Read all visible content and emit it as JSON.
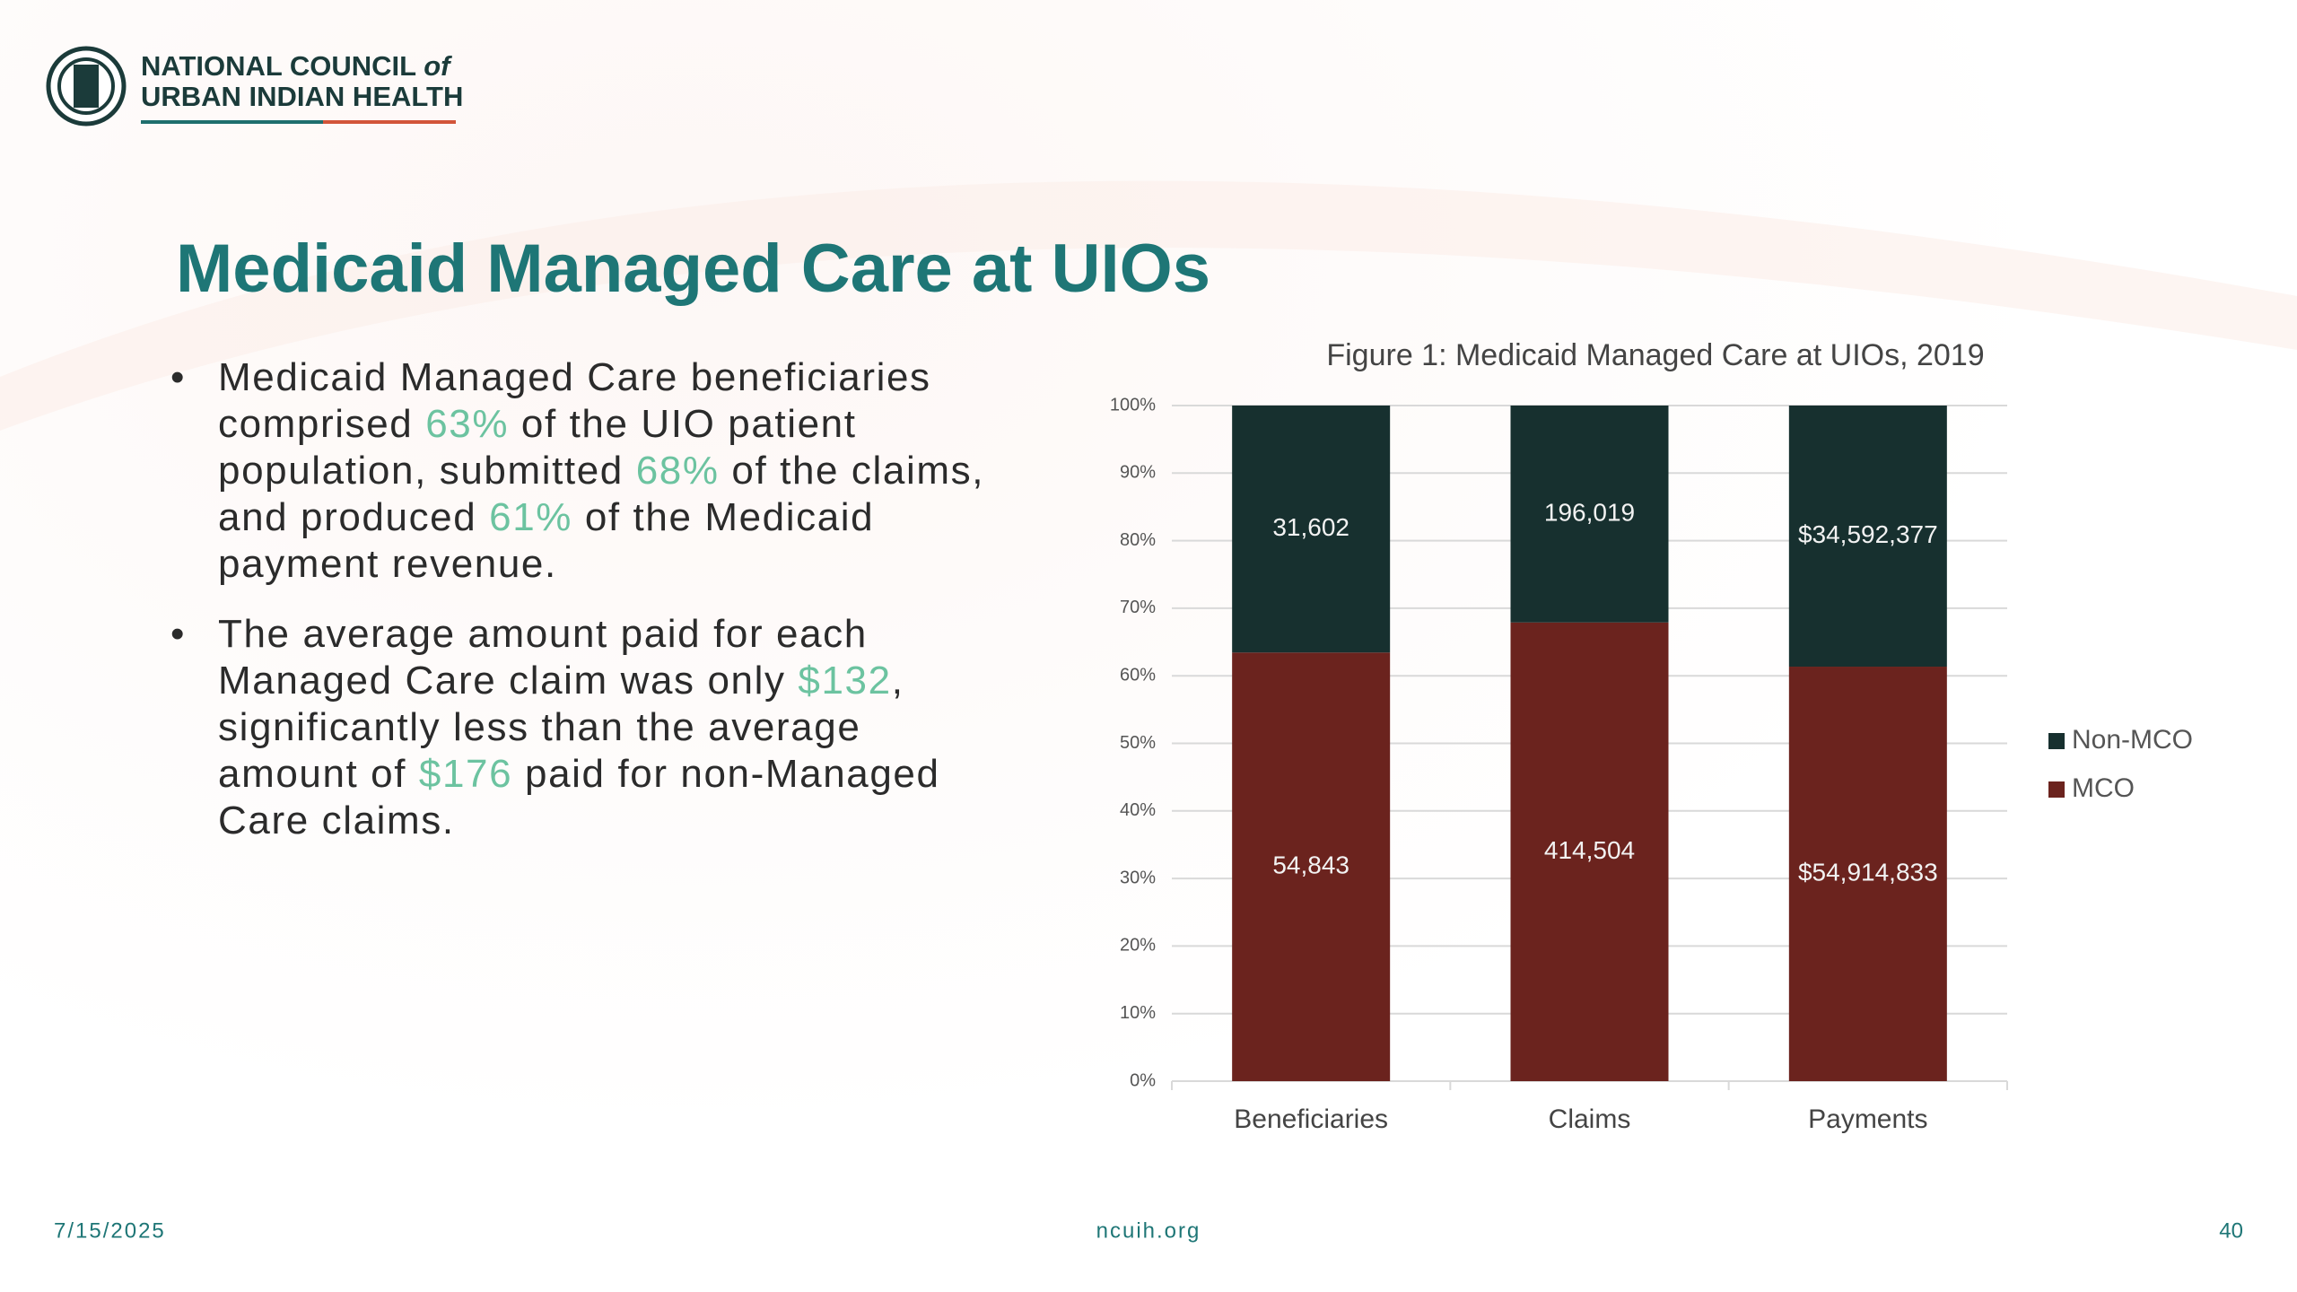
{
  "header": {
    "org_name": [
      "NATIONAL COUNCIL",
      "of",
      "URBAN INDIAN HEALTH"
    ]
  },
  "title": "Medicaid Managed Care at UIOs",
  "bullets": [
    [
      {
        "text": "Medicaid Managed Care beneficiaries comprised ",
        "color": "#2b2b2b"
      },
      {
        "text": "63%",
        "color": "#6cc3a0"
      },
      {
        "text": " of the UIO patient population, submitted ",
        "color": "#2b2b2b"
      },
      {
        "text": "68%",
        "color": "#6cc3a0"
      },
      {
        "text": " of the claims, and produced ",
        "color": "#2b2b2b"
      },
      {
        "text": "61%",
        "color": "#6cc3a0"
      },
      {
        "text": " of the Medicaid payment revenue.",
        "color": "#2b2b2b"
      }
    ],
    [
      {
        "text": "The average amount paid for each Managed Care claim was only ",
        "color": "#2b2b2b"
      },
      {
        "text": "$132",
        "color": "#6cc3a0"
      },
      {
        "text": ", significantly less than the average amount of ",
        "color": "#2b2b2b"
      },
      {
        "text": "$176",
        "color": "#6cc3a0"
      },
      {
        "text": " paid for non-Managed Care claims.",
        "color": "#2b2b2b"
      }
    ]
  ],
  "chart_data": {
    "type": "bar",
    "stacked": "percent",
    "title": "Figure 1: Medicaid Managed Care at UIOs, 2019",
    "categories": [
      "Beneficiaries",
      "Claims",
      "Payments"
    ],
    "series": [
      {
        "name": "MCO",
        "color": "#6b231e",
        "values": [
          54843,
          414504,
          54914833
        ],
        "value_labels": [
          "54,843",
          "414,504",
          "$54,914,833"
        ]
      },
      {
        "name": "Non-MCO",
        "color": "#17302f",
        "values": [
          31602,
          196019,
          34592377
        ],
        "value_labels": [
          "31,602",
          "196,019",
          "$34,592,377"
        ]
      }
    ],
    "ylim": [
      0,
      100
    ],
    "yticks": [
      {
        "value": 0,
        "label": "0%"
      },
      {
        "value": 10,
        "label": "10%"
      },
      {
        "value": 20,
        "label": "20%"
      },
      {
        "value": 30,
        "label": "30%"
      },
      {
        "value": 40,
        "label": "40%"
      },
      {
        "value": 50,
        "label": "50%"
      },
      {
        "value": 60,
        "label": "60%"
      },
      {
        "value": 70,
        "label": "70%"
      },
      {
        "value": 80,
        "label": "80%"
      },
      {
        "value": 90,
        "label": "90%"
      },
      {
        "value": 100,
        "label": "100%"
      }
    ],
    "grid": true,
    "legend": "right"
  },
  "footer": {
    "date": "7/15/2025",
    "site": "ncuih.org",
    "page": "40"
  }
}
